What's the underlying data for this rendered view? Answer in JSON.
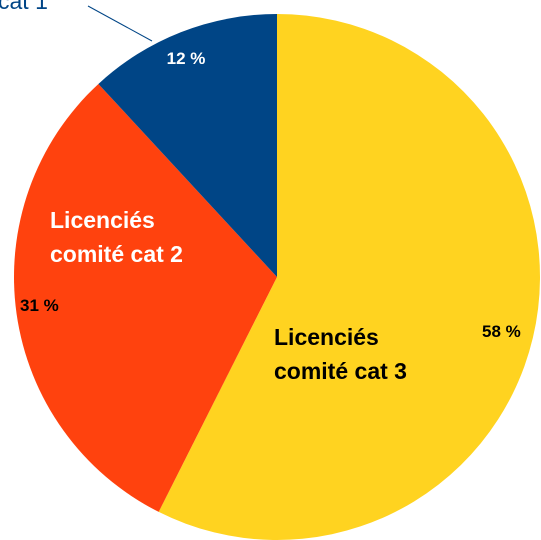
{
  "chart_data": {
    "type": "pie",
    "title": "",
    "legend": "none",
    "start_angle_deg": 0,
    "direction": "clockwise",
    "slices": [
      {
        "label_lines": [
          "Licenciés",
          "comité cat 3"
        ],
        "value": 58,
        "value_label": "58 %",
        "color": "#FFD320",
        "label_color": "#000000",
        "label_mode": "inside"
      },
      {
        "label_lines": [
          "Licenciés",
          "comité cat 2"
        ],
        "value": 31,
        "value_label": "31 %",
        "color": "#FF420E",
        "label_color": "#ffffff",
        "label_mode": "inside"
      },
      {
        "label_lines": [
          "cat 1"
        ],
        "value": 12,
        "value_label": "12 %",
        "color": "#004586",
        "label_color": "#004586",
        "label_mode": "callout"
      }
    ],
    "value_label_colors": [
      "#000000",
      "#000000",
      "#ffffff"
    ],
    "leader_line_color": "#004586"
  }
}
